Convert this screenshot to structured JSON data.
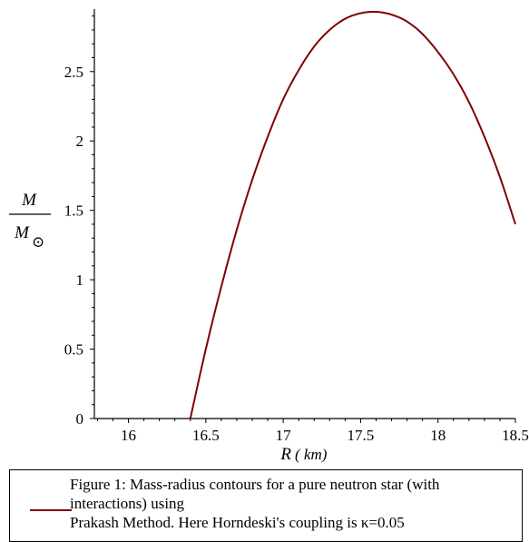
{
  "chart_data": {
    "type": "line",
    "xlabel": "R",
    "xlabel_unit": "km",
    "ylabel_numerator": "M",
    "ylabel_denominator": "M",
    "ylabel_subscript": "⊙",
    "xlim": [
      15.78,
      18.5
    ],
    "ylim": [
      0,
      2.95
    ],
    "x_ticks": [
      16,
      16.5,
      17,
      17.5,
      18,
      18.5
    ],
    "x_tick_labels": [
      "16",
      "16.5",
      "17",
      "17.5",
      "18",
      "18.5"
    ],
    "y_ticks": [
      0,
      0.5,
      1,
      1.5,
      2,
      2.5
    ],
    "y_tick_labels": [
      "0",
      "0.5",
      "1",
      "1.5",
      "2",
      "2.5"
    ],
    "grid": false,
    "legend_position": "bottom",
    "series": [
      {
        "name": "Figure 1: Mass-radius contours for a pure neutron star (with interactions) using Prakash Method. Here Horndeski's coupling is κ=0.05",
        "color": "#800000",
        "x": [
          16.4,
          16.5,
          16.6,
          16.7,
          16.8,
          16.9,
          17.0,
          17.1,
          17.2,
          17.3,
          17.4,
          17.5,
          17.6,
          17.7,
          17.8,
          17.9,
          18.0,
          18.1,
          18.2,
          18.3,
          18.4,
          18.5
        ],
        "y": [
          0.0,
          0.5,
          0.95,
          1.36,
          1.72,
          2.03,
          2.3,
          2.51,
          2.68,
          2.8,
          2.88,
          2.92,
          2.93,
          2.91,
          2.86,
          2.77,
          2.64,
          2.48,
          2.28,
          2.03,
          1.74,
          1.4
        ]
      }
    ]
  },
  "legend": {
    "text": "Figure 1: Mass-radius contours for a pure neutron star (with interactions) using\nPrakash Method. Here Horndeski's coupling is κ=0.05"
  }
}
